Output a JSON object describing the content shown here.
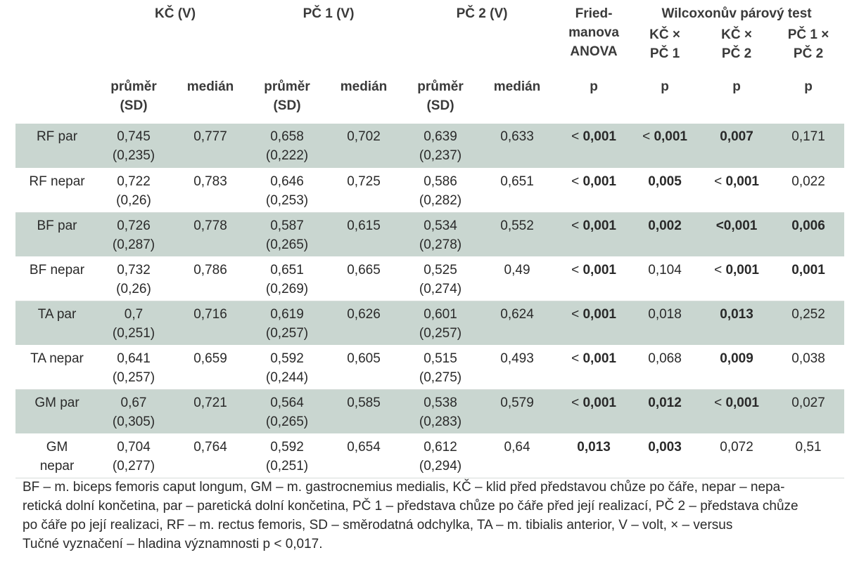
{
  "header": {
    "groups": {
      "kc": "KČ (V)",
      "pc1": "PČ 1 (V)",
      "pc2": "PČ 2 (V)",
      "friedman_line1": "Fried-",
      "friedman_line2": "manova",
      "friedman_line3": "ANOVA",
      "wilcoxon": "Wilcoxonův párový test"
    },
    "wilcoxon_cols": [
      {
        "line1": "KČ ×",
        "line2": "PČ 1"
      },
      {
        "line1": "KČ ×",
        "line2": "PČ 2"
      },
      {
        "line1": "PČ 1 ×",
        "line2": "PČ 2"
      }
    ],
    "sub": {
      "mean_line1": "průměr",
      "mean_line2": "(SD)",
      "median": "medián",
      "p": "p"
    }
  },
  "rows": [
    {
      "name1": "RF par",
      "name2": "",
      "shaded": true,
      "kc_mean": "0,745",
      "kc_sd": "(0,235)",
      "kc_med": "0,777",
      "pc1_mean": "0,658",
      "pc1_sd": "(0,222)",
      "pc1_med": "0,702",
      "pc2_mean": "0,639",
      "pc2_sd": "(0,237)",
      "pc2_med": "0,633",
      "fried": [
        "< ",
        "0,001"
      ],
      "w1": [
        "< ",
        "0,001"
      ],
      "w2": [
        "",
        "0,007"
      ],
      "w3": [
        "0,171",
        ""
      ]
    },
    {
      "name1": "RF nepar",
      "name2": "",
      "shaded": false,
      "kc_mean": "0,722",
      "kc_sd": "(0,26)",
      "kc_med": "0,783",
      "pc1_mean": "0,646",
      "pc1_sd": "(0,253)",
      "pc1_med": "0,725",
      "pc2_mean": "0,586",
      "pc2_sd": "(0,282)",
      "pc2_med": "0,651",
      "fried": [
        "< ",
        "0,001"
      ],
      "w1": [
        "",
        "0,005"
      ],
      "w2": [
        "< ",
        "0,001"
      ],
      "w3": [
        "0,022",
        ""
      ]
    },
    {
      "name1": "BF par",
      "name2": "",
      "shaded": true,
      "kc_mean": "0,726",
      "kc_sd": "(0,287)",
      "kc_med": "0,778",
      "pc1_mean": "0,587",
      "pc1_sd": "(0,265)",
      "pc1_med": "0,615",
      "pc2_mean": "0,534",
      "pc2_sd": "(0,278)",
      "pc2_med": "0,552",
      "fried": [
        "< ",
        "0,001"
      ],
      "w1": [
        "",
        "0,002"
      ],
      "w2": [
        "",
        "<0,001"
      ],
      "w3": [
        "",
        "0,006"
      ]
    },
    {
      "name1": "BF nepar",
      "name2": "",
      "shaded": false,
      "kc_mean": "0,732",
      "kc_sd": "(0,26)",
      "kc_med": "0,786",
      "pc1_mean": "0,651",
      "pc1_sd": "(0,269)",
      "pc1_med": "0,665",
      "pc2_mean": "0,525",
      "pc2_sd": "(0,274)",
      "pc2_med": "0,49",
      "fried": [
        "< ",
        "0,001"
      ],
      "w1": [
        "0,104",
        ""
      ],
      "w2": [
        "< ",
        "0,001"
      ],
      "w3": [
        "",
        "0,001"
      ]
    },
    {
      "name1": "TA par",
      "name2": "",
      "shaded": true,
      "kc_mean": "0,7",
      "kc_sd": "(0,251)",
      "kc_med": "0,716",
      "pc1_mean": "0,619",
      "pc1_sd": "(0,257)",
      "pc1_med": "0,626",
      "pc2_mean": "0,601",
      "pc2_sd": "(0,257)",
      "pc2_med": "0,624",
      "fried": [
        "< ",
        "0,001"
      ],
      "w1": [
        "0,018",
        ""
      ],
      "w2": [
        "",
        "0,013"
      ],
      "w3": [
        "0,252",
        ""
      ]
    },
    {
      "name1": "TA nepar",
      "name2": "",
      "shaded": false,
      "kc_mean": "0,641",
      "kc_sd": "(0,257)",
      "kc_med": "0,659",
      "pc1_mean": "0,592",
      "pc1_sd": "(0,244)",
      "pc1_med": "0,605",
      "pc2_mean": "0,515",
      "pc2_sd": "(0,275)",
      "pc2_med": "0,493",
      "fried": [
        "< ",
        "0,001"
      ],
      "w1": [
        "0,068",
        ""
      ],
      "w2": [
        "",
        "0,009"
      ],
      "w3": [
        "0,038",
        ""
      ]
    },
    {
      "name1": "GM par",
      "name2": "",
      "shaded": true,
      "kc_mean": "0,67",
      "kc_sd": "(0,305)",
      "kc_med": "0,721",
      "pc1_mean": "0,564",
      "pc1_sd": "(0,265)",
      "pc1_med": "0,585",
      "pc2_mean": "0,538",
      "pc2_sd": "(0,283)",
      "pc2_med": "0,579",
      "fried": [
        "< ",
        "0,001"
      ],
      "w1": [
        "",
        "0,012"
      ],
      "w2": [
        "< ",
        "0,001"
      ],
      "w3": [
        "0,027",
        ""
      ]
    },
    {
      "name1": "GM",
      "name2": "nepar",
      "shaded": false,
      "kc_mean": "0,704",
      "kc_sd": "(0,277)",
      "kc_med": "0,764",
      "pc1_mean": "0,592",
      "pc1_sd": "(0,251)",
      "pc1_med": "0,654",
      "pc2_mean": "0,612",
      "pc2_sd": "(0,294)",
      "pc2_med": "0,64",
      "fried": [
        "",
        "0,013"
      ],
      "w1": [
        "",
        "0,003"
      ],
      "w2": [
        "0,072",
        ""
      ],
      "w3": [
        "0,51",
        ""
      ]
    }
  ],
  "footnote": {
    "line1": "BF – m. biceps femoris caput longum, GM – m. gastrocnemius medialis, KČ – klid před představou chůze po čáře, nepar – nepa-",
    "line2": "retická dolní končetina, par – paretická dolní končetina, PČ 1 – představa chůze po čáře před její realizací, PČ 2 – představa chůze",
    "line3": "po čáře po její realizaci, RF – m. rectus femoris, SD – směrodatná odchylka, TA – m. tibialis anterior, V – volt, × – versus",
    "line4": "Tučné vyznačení – hladina významnosti p < 0,017."
  }
}
